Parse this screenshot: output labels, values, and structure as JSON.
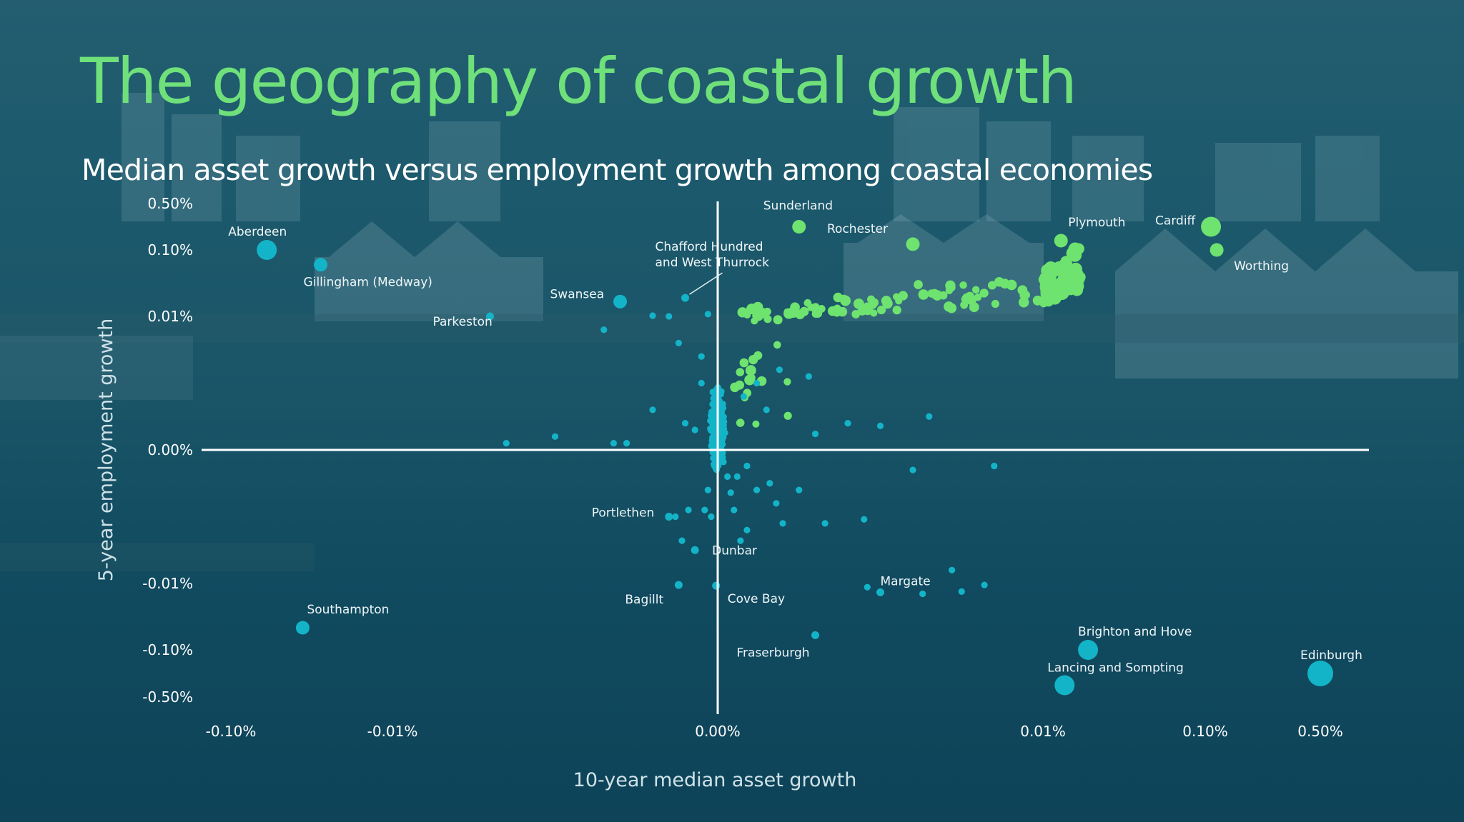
{
  "title": "The geography of coastal growth",
  "subtitle": "Median asset growth versus employment growth among coastal economies",
  "colors": {
    "title": "#6fe07a",
    "positive": "#6ee36f",
    "other": "#14b4c8",
    "axis": "#ffffff"
  },
  "chart_data": {
    "type": "scatter",
    "xlabel": "10-year median asset growth",
    "ylabel": "5-year employment growth",
    "x_scale": "symlog",
    "y_scale": "symlog",
    "x_ticks": [
      "-0.10%",
      "-0.01%",
      "0.00%",
      "0.01%",
      "0.10%",
      "0.50%"
    ],
    "y_ticks": [
      "0.50%",
      "0.10%",
      "0.01%",
      "0.00%",
      "-0.01%",
      "-0.10%",
      "-0.50%"
    ],
    "grid": false,
    "points": [
      {
        "label": "Aberdeen",
        "x": -0.08,
        "y": 0.1,
        "size": 3
      },
      {
        "label": "Gillingham (Medway)",
        "x": -0.05,
        "y": 0.08,
        "size": 2
      },
      {
        "label": "Swansea",
        "x": -0.003,
        "y": 0.03,
        "size": 2
      },
      {
        "label": "Chafford Hundred and West Thurrock",
        "x": -0.001,
        "y": 0.035,
        "size": 1
      },
      {
        "label": "Parkeston",
        "x": -0.007,
        "y": 0.01,
        "size": 1
      },
      {
        "label": "Sunderland",
        "x": 0.0025,
        "y": 0.3,
        "size": 2
      },
      {
        "label": "Rochester",
        "x": 0.006,
        "y": 0.15,
        "size": 2
      },
      {
        "label": "Plymouth",
        "x": 0.02,
        "y": 0.18,
        "size": 2
      },
      {
        "label": "Cardiff",
        "x": 0.12,
        "y": 0.3,
        "size": 3
      },
      {
        "label": "Worthing",
        "x": 0.14,
        "y": 0.1,
        "size": 2
      },
      {
        "label": "Portlethen",
        "x": -0.0015,
        "y": -0.005,
        "size": 1
      },
      {
        "label": "Bagillt",
        "x": -0.0012,
        "y": -0.012,
        "size": 1
      },
      {
        "label": "Dunbar",
        "x": -0.0007,
        "y": -0.0075,
        "size": 1
      },
      {
        "label": "Southampton",
        "x": -0.06,
        "y": -0.07,
        "size": 2
      },
      {
        "label": "Cove Bay",
        "x": -5e-05,
        "y": -0.013,
        "size": 1
      },
      {
        "label": "Fraserburgh",
        "x": 0.003,
        "y": -0.08,
        "size": 1
      },
      {
        "label": "Margate",
        "x": 0.005,
        "y": -0.022,
        "size": 1
      },
      {
        "label": "Brighton and Hove",
        "x": 0.035,
        "y": -0.1,
        "size": 3
      },
      {
        "label": "Lancing and Sompting",
        "x": 0.022,
        "y": -0.4,
        "size": 3
      },
      {
        "label": "Edinburgh",
        "x": 0.5,
        "y": -0.3,
        "size": 4
      }
    ]
  }
}
